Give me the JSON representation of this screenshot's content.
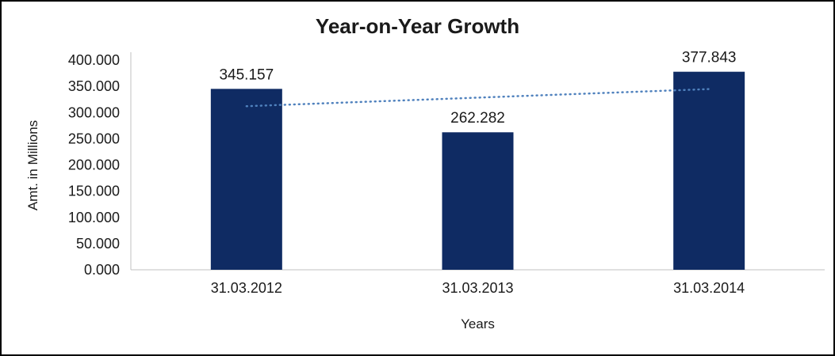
{
  "chart_data": {
    "type": "bar",
    "title": "Year-on-Year Growth",
    "xlabel": "Years",
    "ylabel": "Amt. in Millions",
    "categories": [
      "31.03.2012",
      "31.03.2013",
      "31.03.2014"
    ],
    "values": [
      345.157,
      262.282,
      377.843
    ],
    "value_labels": [
      "345.157",
      "262.282",
      "377.843"
    ],
    "ylim": [
      0,
      400
    ],
    "ytick_labels": [
      "0.000",
      "50.000",
      "100.000",
      "150.000",
      "200.000",
      "250.000",
      "300.000",
      "350.000",
      "400.000"
    ],
    "trendline": {
      "type": "linear",
      "style": "dotted",
      "values": [
        312.084,
        328.427,
        344.771
      ]
    },
    "grid": false,
    "legend": false,
    "colors": {
      "bar": "#0f2b63",
      "trendline": "#4f81bd",
      "axis": "#c0c0c0",
      "text": "#1a1a1a",
      "background": "#ffffff",
      "border": "#000000"
    }
  }
}
